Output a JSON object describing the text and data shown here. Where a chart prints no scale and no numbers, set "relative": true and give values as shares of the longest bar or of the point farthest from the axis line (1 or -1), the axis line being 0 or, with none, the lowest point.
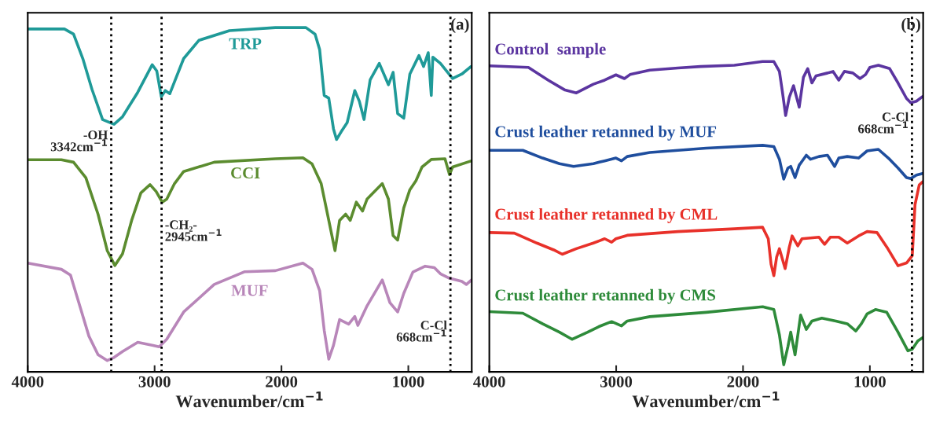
{
  "chart_data": [
    {
      "type": "line",
      "relative": true,
      "xlabel": "Wavenumber/cm$^{−1}$",
      "xlim": [
        4000,
        500
      ],
      "xticks": [
        4000,
        3000,
        2000,
        1000
      ],
      "tick_labels": "x",
      "legend": false,
      "grid": false,
      "annotations": [
        "(a)"
      ],
      "ref_lines": [
        {
          "axis": "x",
          "value": 3342,
          "label": "-OH\n3342cm$^{−1}$",
          "color": "#000000",
          "line_style": "dotted"
        },
        {
          "axis": "x",
          "value": 2945,
          "label": "-CH₂-\n2945cm$^{−1}$",
          "color": "#000000",
          "line_style": "dotted"
        },
        {
          "axis": "x",
          "value": 668,
          "label": "C-Cl\n668cm$^{−1}$",
          "color": "#000000",
          "line_style": "dotted"
        }
      ],
      "series": [
        {
          "name": "TRP",
          "color": "#1f9a98",
          "x": [
            4000,
            3711,
            3639,
            3566,
            3494,
            3410,
            3320,
            3253,
            3133,
            3019,
            2983,
            2947,
            2916,
            2880,
            2771,
            2651,
            2410,
            2048,
            1807,
            1735,
            1699,
            1663,
            1627,
            1590,
            1566,
            1530,
            1482,
            1422,
            1386,
            1349,
            1301,
            1229,
            1157,
            1120,
            1084,
            1036,
            988,
            916,
            880,
            843,
            819,
            807,
            747,
            651,
            578,
            506
          ],
          "values": [
            0.996,
            0.996,
            0.981,
            0.91,
            0.821,
            0.733,
            0.719,
            0.741,
            0.812,
            0.892,
            0.874,
            0.799,
            0.817,
            0.808,
            0.91,
            0.963,
            0.991,
            1,
            1,
            0.981,
            0.936,
            0.803,
            0.795,
            0.706,
            0.675,
            0.697,
            0.724,
            0.817,
            0.786,
            0.733,
            0.848,
            0.896,
            0.834,
            0.87,
            0.75,
            0.737,
            0.865,
            0.919,
            0.887,
            0.927,
            0.803,
            0.914,
            0.896,
            0.852,
            0.865,
            0.887
          ]
        },
        {
          "name": "CCI",
          "color": "#5b8c2f",
          "x": [
            4000,
            3735,
            3639,
            3542,
            3446,
            3373,
            3313,
            3253,
            3181,
            3108,
            3036,
            2988,
            2940,
            2904,
            2843,
            2771,
            2530,
            2048,
            1831,
            1759,
            1687,
            1627,
            1578,
            1542,
            1494,
            1458,
            1410,
            1361,
            1325,
            1205,
            1157,
            1120,
            1084,
            1036,
            988,
            940,
            892,
            819,
            711,
            675,
            651,
            502
          ],
          "values": [
            0.616,
            0.616,
            0.609,
            0.564,
            0.458,
            0.352,
            0.309,
            0.343,
            0.44,
            0.52,
            0.544,
            0.524,
            0.493,
            0.502,
            0.547,
            0.582,
            0.609,
            0.619,
            0.622,
            0.604,
            0.547,
            0.44,
            0.352,
            0.44,
            0.458,
            0.44,
            0.493,
            0.467,
            0.502,
            0.547,
            0.502,
            0.396,
            0.383,
            0.476,
            0.529,
            0.555,
            0.595,
            0.617,
            0.619,
            0.573,
            0.595,
            0.613
          ]
        },
        {
          "name": "MUF",
          "color": "#b886b9",
          "x": [
            4000,
            3735,
            3663,
            3590,
            3518,
            3446,
            3373,
            3320,
            3253,
            3133,
            3012,
            2964,
            2904,
            2771,
            2530,
            2289,
            2048,
            1831,
            1759,
            1699,
            1663,
            1627,
            1590,
            1542,
            1470,
            1422,
            1398,
            1325,
            1205,
            1145,
            1084,
            1036,
            964,
            867,
            795,
            747,
            675,
            578,
            542,
            502
          ],
          "values": [
            0.316,
            0.298,
            0.281,
            0.192,
            0.104,
            0.05,
            0.033,
            0.042,
            0.059,
            0.086,
            0.077,
            0.073,
            0.095,
            0.174,
            0.254,
            0.291,
            0.294,
            0.316,
            0.298,
            0.236,
            0.121,
            0.037,
            0.077,
            0.152,
            0.139,
            0.161,
            0.135,
            0.192,
            0.267,
            0.201,
            0.174,
            0.228,
            0.29,
            0.307,
            0.303,
            0.285,
            0.272,
            0.263,
            0.254,
            0.267
          ]
        }
      ]
    },
    {
      "type": "line",
      "relative": true,
      "xlabel": "Wavenumber/cm$^{−1}$",
      "xlim": [
        4000,
        580
      ],
      "xticks": [
        4000,
        3000,
        2000,
        1000
      ],
      "tick_labels": "x",
      "legend": false,
      "grid": false,
      "annotations": [
        "(b)"
      ],
      "ref_lines": [
        {
          "axis": "x",
          "value": 668,
          "label": "C-Cl\n668cm$^{−1}$",
          "color": "#000000",
          "line_style": "dotted"
        }
      ],
      "series": [
        {
          "name": "Control  sample",
          "color": "#5b35a0",
          "x": [
            4000,
            3692,
            3536,
            3403,
            3314,
            3180,
            3091,
            3002,
            2935,
            2891,
            2735,
            2513,
            2335,
            2068,
            1846,
            1757,
            1713,
            1690,
            1664,
            1635,
            1602,
            1557,
            1524,
            1490,
            1457,
            1424,
            1333,
            1290,
            1245,
            1201,
            1134,
            1078,
            1034,
            1000,
            933,
            844,
            778,
            711,
            677,
            633,
            585
          ],
          "values": [
            0.986,
            0.981,
            0.94,
            0.908,
            0.899,
            0.927,
            0.94,
            0.957,
            0.945,
            0.958,
            0.972,
            0.979,
            0.984,
            0.988,
            1,
            1,
            0.968,
            0.904,
            0.826,
            0.885,
            0.922,
            0.853,
            0.949,
            0.977,
            0.931,
            0.954,
            0.963,
            0.968,
            0.94,
            0.968,
            0.963,
            0.945,
            0.958,
            0.981,
            0.988,
            0.977,
            0.931,
            0.881,
            0.867,
            0.872,
            0.887
          ]
        },
        {
          "name": "Crust leather retanned by MUF",
          "color": "#1f4e9e",
          "x": [
            4000,
            3736,
            3581,
            3447,
            3336,
            3180,
            3091,
            3002,
            2958,
            2913,
            2735,
            2290,
            1845,
            1757,
            1713,
            1679,
            1646,
            1624,
            1590,
            1557,
            1501,
            1468,
            1401,
            1334,
            1278,
            1245,
            1178,
            1089,
            1022,
            933,
            844,
            778,
            711,
            677,
            633,
            585
          ],
          "values": [
            0.714,
            0.714,
            0.689,
            0.671,
            0.662,
            0.671,
            0.68,
            0.689,
            0.68,
            0.694,
            0.707,
            0.721,
            0.73,
            0.726,
            0.685,
            0.621,
            0.657,
            0.662,
            0.626,
            0.666,
            0.698,
            0.685,
            0.694,
            0.698,
            0.662,
            0.689,
            0.694,
            0.689,
            0.712,
            0.717,
            0.685,
            0.657,
            0.626,
            0.623,
            0.634,
            0.639
          ]
        },
        {
          "name": "Crust leather retanned by CML",
          "color": "#e8312a",
          "x": [
            4000,
            3803,
            3625,
            3492,
            3425,
            3314,
            3180,
            3091,
            3036,
            3002,
            2913,
            2513,
            2068,
            1846,
            1801,
            1779,
            1757,
            1735,
            1713,
            1668,
            1635,
            1613,
            1568,
            1535,
            1401,
            1357,
            1312,
            1245,
            1178,
            1089,
            1022,
            944,
            866,
            778,
            711,
            666,
            644,
            611,
            585
          ],
          "values": [
            0.449,
            0.447,
            0.415,
            0.393,
            0.379,
            0.397,
            0.415,
            0.429,
            0.418,
            0.429,
            0.44,
            0.452,
            0.461,
            0.466,
            0.429,
            0.347,
            0.31,
            0.37,
            0.397,
            0.333,
            0.402,
            0.438,
            0.406,
            0.429,
            0.434,
            0.411,
            0.434,
            0.434,
            0.415,
            0.438,
            0.452,
            0.449,
            0.402,
            0.342,
            0.351,
            0.374,
            0.539,
            0.602,
            0.612
          ]
        },
        {
          "name": "Crust leather retanned by CMS",
          "color": "#2e8b3a",
          "x": [
            4000,
            3736,
            3581,
            3447,
            3347,
            3225,
            3136,
            3036,
            2958,
            2913,
            2735,
            2290,
            1845,
            1757,
            1713,
            1679,
            1646,
            1624,
            1590,
            1546,
            1501,
            1457,
            1379,
            1268,
            1178,
            1111,
            1067,
            1022,
            956,
            867,
            778,
            700,
            666,
            622,
            585
          ],
          "values": [
            0.194,
            0.189,
            0.155,
            0.128,
            0.105,
            0.128,
            0.146,
            0.162,
            0.148,
            0.164,
            0.178,
            0.192,
            0.21,
            0.201,
            0.119,
            0.023,
            0.082,
            0.128,
            0.055,
            0.183,
            0.137,
            0.164,
            0.173,
            0.164,
            0.155,
            0.132,
            0.155,
            0.187,
            0.201,
            0.192,
            0.128,
            0.068,
            0.073,
            0.1,
            0.11
          ]
        }
      ]
    }
  ]
}
